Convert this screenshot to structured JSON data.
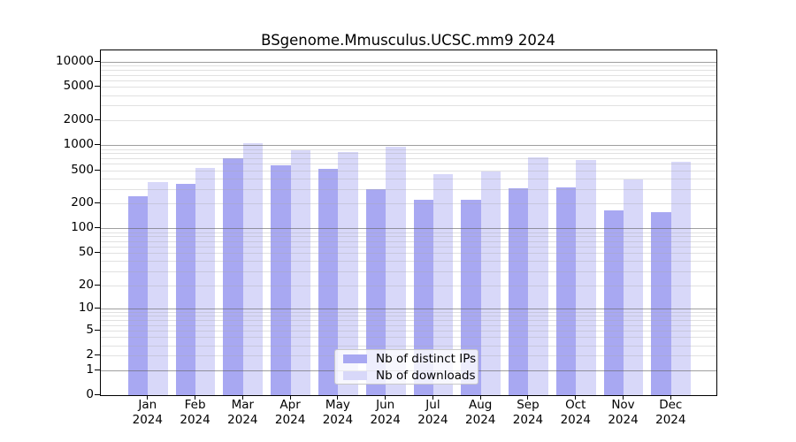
{
  "chart_data": {
    "type": "bar",
    "title": "BSgenome.Mmusculus.UCSC.mm9 2024",
    "scale": "log1p",
    "categories": [
      "Jan",
      "Feb",
      "Mar",
      "Apr",
      "May",
      "Jun",
      "Jul",
      "Aug",
      "Sep",
      "Oct",
      "Nov",
      "Dec"
    ],
    "year_label": "2024",
    "series": [
      {
        "name": "Nb of distinct IPs",
        "color": "#a8a8f2",
        "values": [
          245,
          340,
          695,
          565,
          520,
          295,
          220,
          220,
          300,
          310,
          165,
          155
        ]
      },
      {
        "name": "Nb of downloads",
        "color": "#d8d8f9",
        "values": [
          360,
          530,
          1050,
          860,
          825,
          945,
          445,
          480,
          710,
          660,
          390,
          625
        ]
      }
    ],
    "y_ticks": [
      0,
      1,
      2,
      5,
      10,
      20,
      50,
      100,
      200,
      500,
      1000,
      2000,
      5000,
      10000
    ],
    "ylim": [
      0,
      13600
    ],
    "xlabel": "",
    "ylabel": "",
    "grid": "on",
    "legend_position": "lower center",
    "colors": {
      "major_grid": "#a0a0a0",
      "minor_grid": "#e4e4e4",
      "axis": "#000000",
      "background": "#ffffff"
    }
  }
}
